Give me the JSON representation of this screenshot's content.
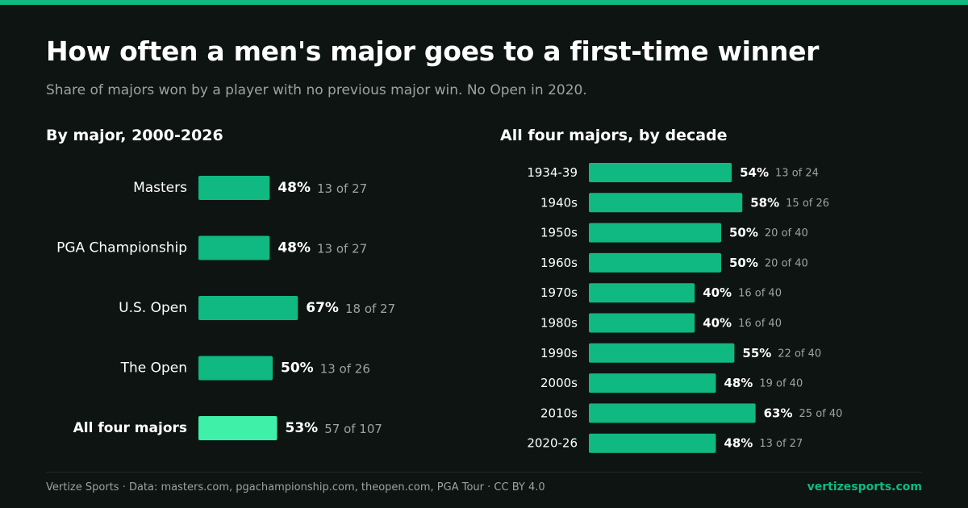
{
  "header": {
    "title": "How often a men's major goes to a first-time winner",
    "subtitle": "Share of majors won by a player with no previous major win. No Open in 2020."
  },
  "colors": {
    "background": "#0d1412",
    "bar": "#10b981",
    "bar_highlight": "#3ff0a9",
    "muted_text": "#9ca3a0",
    "accent": "#10b981"
  },
  "chart_data": [
    {
      "type": "bar",
      "orientation": "horizontal",
      "title": "By major, 2000-2026",
      "categories": [
        "Masters",
        "PGA Championship",
        "U.S. Open",
        "The Open",
        "All four majors"
      ],
      "values": [
        48,
        48,
        67,
        50,
        53
      ],
      "value_labels": [
        "48%",
        "48%",
        "67%",
        "50%",
        "53%"
      ],
      "counts": [
        "13 of 27",
        "13 of 27",
        "18 of 27",
        "13 of 26",
        "57 of 107"
      ],
      "highlighted": [
        "All four majors"
      ],
      "unit": "%",
      "xlim": [
        0,
        100
      ],
      "grid": false
    },
    {
      "type": "bar",
      "orientation": "horizontal",
      "title": "All four majors, by decade",
      "categories": [
        "1934-39",
        "1940s",
        "1950s",
        "1960s",
        "1970s",
        "1980s",
        "1990s",
        "2000s",
        "2010s",
        "2020-26"
      ],
      "values": [
        54,
        58,
        50,
        50,
        40,
        40,
        55,
        48,
        63,
        48
      ],
      "value_labels": [
        "54%",
        "58%",
        "50%",
        "50%",
        "40%",
        "40%",
        "55%",
        "48%",
        "63%",
        "48%"
      ],
      "counts": [
        "13 of 24",
        "15 of 26",
        "20 of 40",
        "20 of 40",
        "16 of 40",
        "16 of 40",
        "22 of 40",
        "19 of 40",
        "25 of 40",
        "13 of 27"
      ],
      "unit": "%",
      "xlim": [
        0,
        100
      ],
      "grid": false
    }
  ],
  "footer": {
    "credit": "Vertize Sports · Data: masters.com, pgachampionship.com, theopen.com, PGA Tour · CC BY 4.0",
    "site": "vertizesports.com"
  }
}
